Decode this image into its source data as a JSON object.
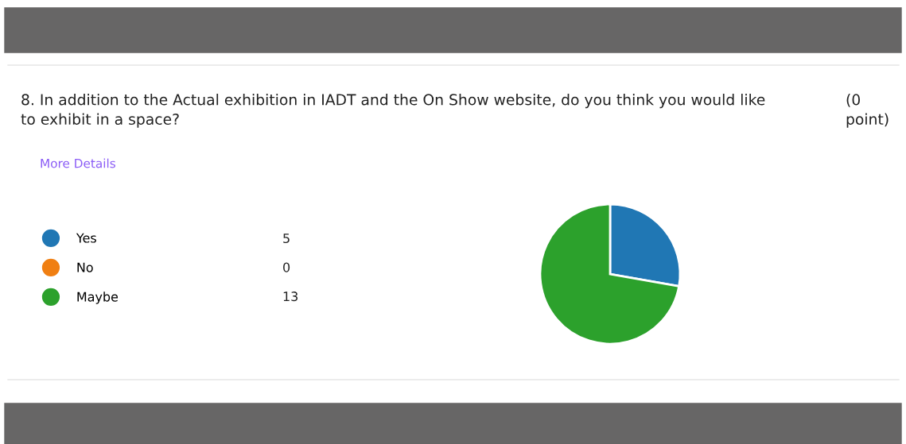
{
  "chart_data": {
    "type": "pie",
    "title": "8. In addition to the Actual exhibition in IADT and the On Show website, do you think you would like\nto exhibit in a space?",
    "annotations": [
      "(0\npoint)",
      "More Details"
    ],
    "categories": [
      "Yes",
      "No",
      "Maybe"
    ],
    "values": [
      5,
      0,
      13
    ],
    "colors": [
      "#2077b4",
      "#f07f12",
      "#2ca12c"
    ],
    "value_labels": [
      "5",
      "0",
      "13"
    ],
    "legend": "left"
  }
}
